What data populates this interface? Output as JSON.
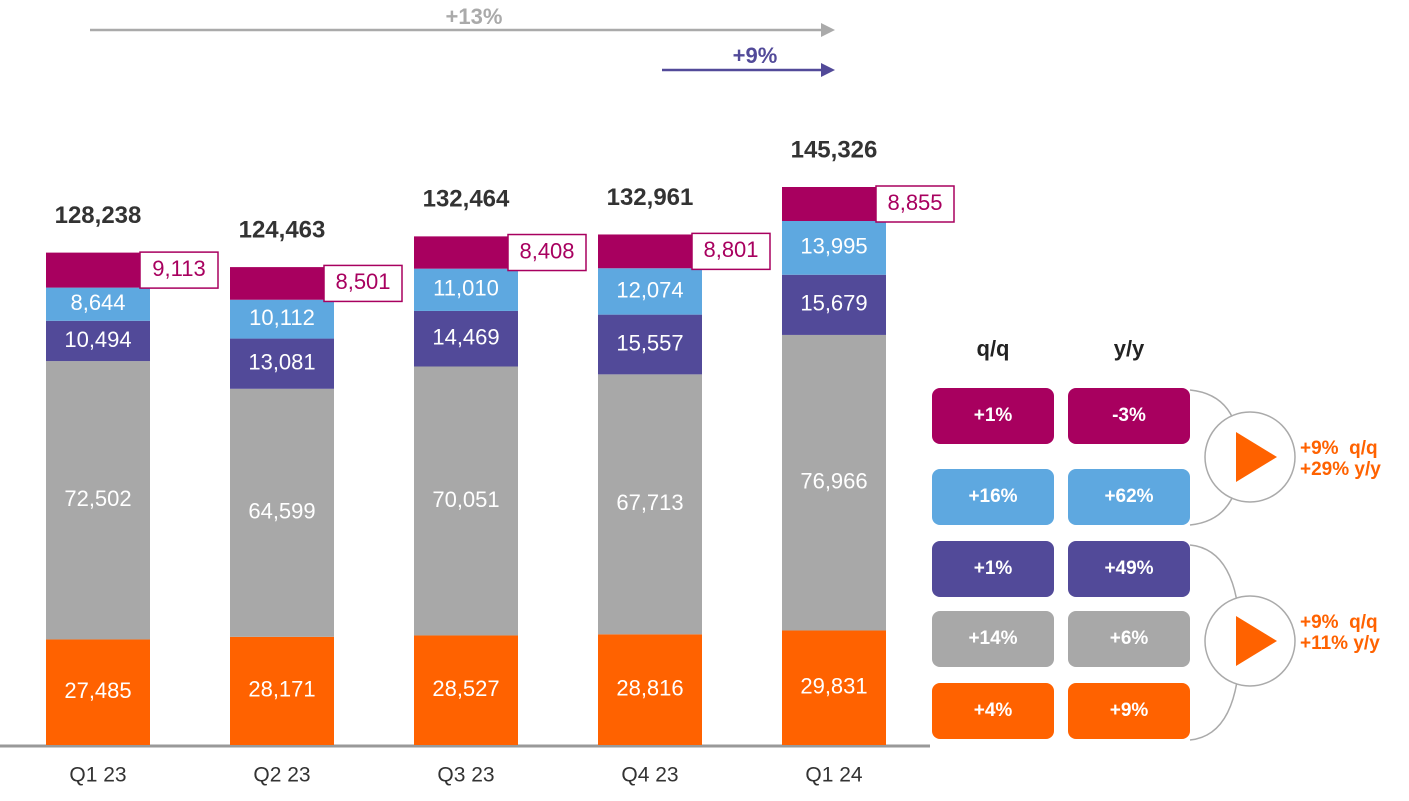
{
  "chart_data": {
    "type": "stacked_bar",
    "categories": [
      "Q1 23",
      "Q2 23",
      "Q3 23",
      "Q4 23",
      "Q1 24"
    ],
    "series": [
      {
        "color": "#ff6200",
        "values": [
          27485,
          28171,
          28527,
          28816,
          29831
        ],
        "value_labels": [
          "27,485",
          "28,171",
          "28,527",
          "28,816",
          "29,831"
        ]
      },
      {
        "color": "#a8a8a8",
        "values": [
          72502,
          64599,
          70051,
          67713,
          76966
        ],
        "value_labels": [
          "72,502",
          "64,599",
          "70,051",
          "67,713",
          "76,966"
        ]
      },
      {
        "color": "#524a99",
        "values": [
          10494,
          13081,
          14469,
          15557,
          15679
        ],
        "value_labels": [
          "10,494",
          "13,081",
          "14,469",
          "15,557",
          "15,679"
        ]
      },
      {
        "color": "#5ea8e0",
        "values": [
          8644,
          10112,
          11010,
          12074,
          13995
        ],
        "value_labels": [
          "8,644",
          "10,112",
          "11,010",
          "12,074",
          "13,995"
        ]
      },
      {
        "color": "#a8005f",
        "values": [
          9113,
          8501,
          8408,
          8801,
          8855
        ],
        "value_labels": [
          "9,113",
          "8,501",
          "8,408",
          "8,801",
          "8,855"
        ],
        "label_box": true
      }
    ],
    "totals": [
      "128,238",
      "124,463",
      "132,464",
      "132,961",
      "145,326"
    ],
    "annotations": [
      {
        "text": "+13%",
        "color": "#aaaaaa"
      },
      {
        "text": "+9%",
        "color": "#524a99"
      }
    ],
    "growth": {
      "headers": [
        "q/q",
        "y/y"
      ],
      "rows": [
        [
          "+1%",
          "-3%"
        ],
        [
          "+16%",
          "+62%"
        ],
        [
          "+1%",
          "+49%"
        ],
        [
          "+14%",
          "+6%"
        ],
        [
          "+4%",
          "+9%"
        ]
      ],
      "summaries": [
        [
          "+9%  q/q",
          "+29% y/y"
        ],
        [
          "+9%  q/q",
          "+11% y/y"
        ]
      ]
    }
  }
}
